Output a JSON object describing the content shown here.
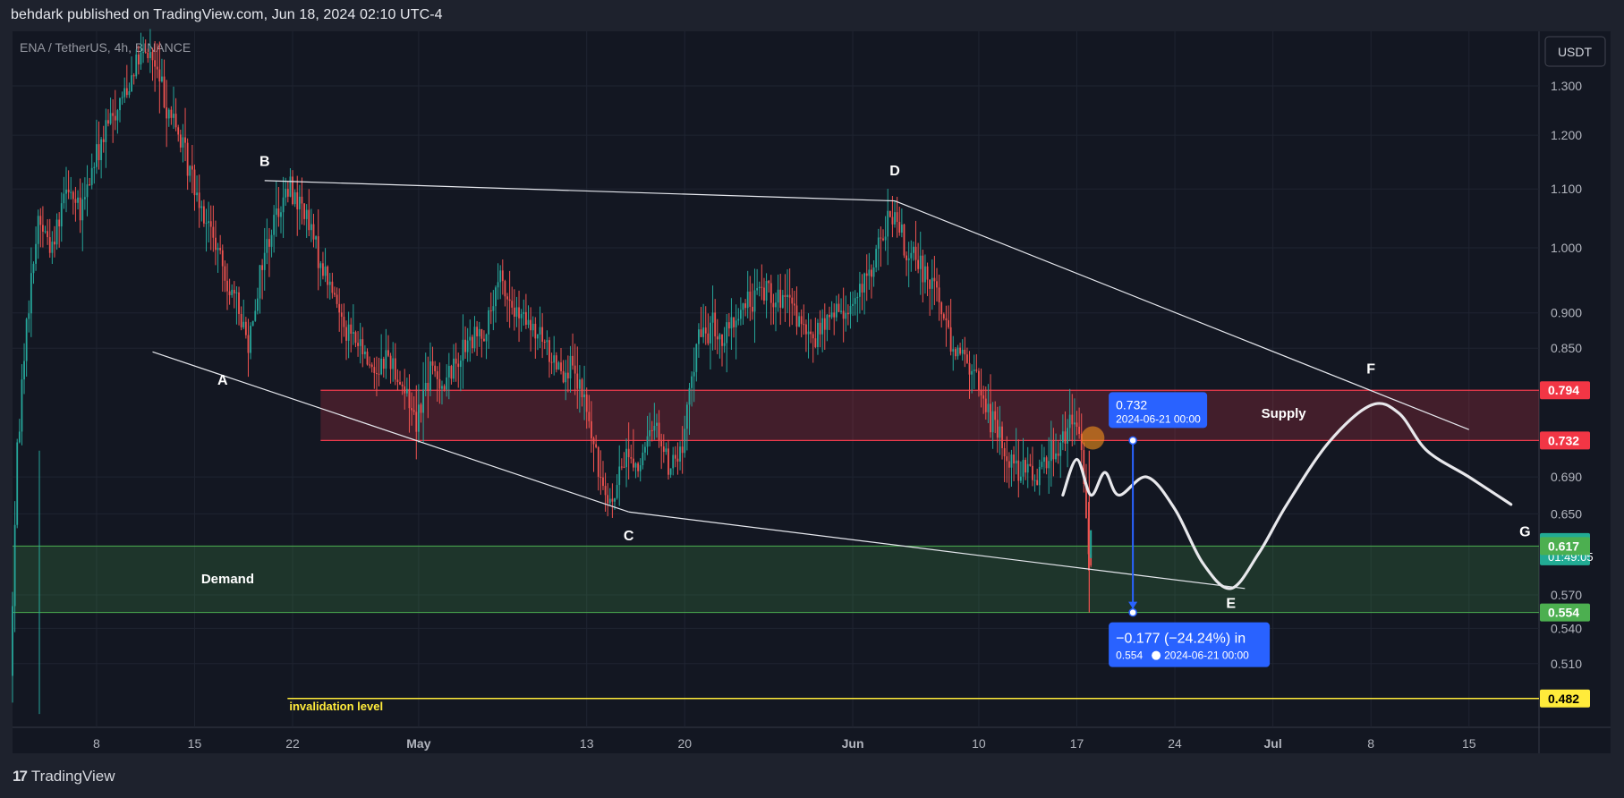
{
  "header": {
    "published": "behdark published on TradingView.com, Jun 18, 2024 02:10 UTC-4",
    "symbol": "ENA / TetherUS, 4h, BINANCE"
  },
  "footer": {
    "brand": "TradingView"
  },
  "colors": {
    "background": "#131722",
    "frame": "#1e222d",
    "up": "#26a69a",
    "down": "#ef5350",
    "supply": "#ef3b4d",
    "demand": "#4caf50",
    "blue": "#2962ff",
    "teal": "#22ab94",
    "yellow": "#ffeb3b"
  },
  "chart_data": {
    "type": "candlestick",
    "currency": "USDT",
    "yscale": "log",
    "ylim": [
      0.46,
      1.42
    ],
    "xlim": [
      "2024-04-02",
      "2024-07-20"
    ],
    "y_ticks": [
      1.3,
      1.2,
      1.1,
      1.0,
      0.9,
      0.85,
      0.69,
      0.65,
      0.57,
      0.54,
      0.51
    ],
    "y_tick_labels": [
      "1.300",
      "1.200",
      "1.100",
      "1.000",
      "0.900",
      "0.850",
      "0.690",
      "0.650",
      "0.570",
      "0.540",
      "0.510"
    ],
    "x_ticks": [
      {
        "date": "2024-04-08",
        "label": "8"
      },
      {
        "date": "2024-04-15",
        "label": "15"
      },
      {
        "date": "2024-04-22",
        "label": "22"
      },
      {
        "date": "2024-05-01",
        "label": "May",
        "bold": true
      },
      {
        "date": "2024-05-13",
        "label": "13"
      },
      {
        "date": "2024-05-20",
        "label": "20"
      },
      {
        "date": "2024-06-01",
        "label": "Jun",
        "bold": true
      },
      {
        "date": "2024-06-10",
        "label": "10"
      },
      {
        "date": "2024-06-17",
        "label": "17"
      },
      {
        "date": "2024-06-24",
        "label": "24"
      },
      {
        "date": "2024-07-01",
        "label": "Jul",
        "bold": true
      },
      {
        "date": "2024-07-08",
        "label": "8"
      },
      {
        "date": "2024-07-15",
        "label": "15"
      }
    ],
    "price_path": [
      [
        "2024-04-02",
        0.5
      ],
      [
        "2024-04-02T12",
        0.72
      ],
      [
        "2024-04-03",
        0.85
      ],
      [
        "2024-04-04",
        1.05
      ],
      [
        "2024-04-05",
        1.0
      ],
      [
        "2024-04-06",
        1.12
      ],
      [
        "2024-04-07",
        1.05
      ],
      [
        "2024-04-08",
        1.15
      ],
      [
        "2024-04-09",
        1.22
      ],
      [
        "2024-04-10",
        1.28
      ],
      [
        "2024-04-11",
        1.35
      ],
      [
        "2024-04-12",
        1.37
      ],
      [
        "2024-04-13",
        1.28
      ],
      [
        "2024-04-14",
        1.2
      ],
      [
        "2024-04-15",
        1.12
      ],
      [
        "2024-04-16",
        1.05
      ],
      [
        "2024-04-17",
        0.98
      ],
      [
        "2024-04-18",
        0.92
      ],
      [
        "2024-04-19",
        0.86
      ],
      [
        "2024-04-20",
        0.98
      ],
      [
        "2024-04-21",
        1.06
      ],
      [
        "2024-04-22",
        1.1
      ],
      [
        "2024-04-23",
        1.06
      ],
      [
        "2024-04-24",
        0.99
      ],
      [
        "2024-04-25",
        0.93
      ],
      [
        "2024-04-26",
        0.88
      ],
      [
        "2024-04-27",
        0.85
      ],
      [
        "2024-04-28",
        0.82
      ],
      [
        "2024-04-29",
        0.84
      ],
      [
        "2024-04-30",
        0.8
      ],
      [
        "2024-05-01",
        0.76
      ],
      [
        "2024-05-02",
        0.82
      ],
      [
        "2024-05-03",
        0.8
      ],
      [
        "2024-05-04",
        0.84
      ],
      [
        "2024-05-05",
        0.86
      ],
      [
        "2024-05-06",
        0.88
      ],
      [
        "2024-05-07",
        0.95
      ],
      [
        "2024-05-08",
        0.9
      ],
      [
        "2024-05-09",
        0.88
      ],
      [
        "2024-05-10",
        0.86
      ],
      [
        "2024-05-11",
        0.83
      ],
      [
        "2024-05-12",
        0.82
      ],
      [
        "2024-05-13",
        0.78
      ],
      [
        "2024-05-14",
        0.7
      ],
      [
        "2024-05-15",
        0.66
      ],
      [
        "2024-05-16",
        0.72
      ],
      [
        "2024-05-17",
        0.7
      ],
      [
        "2024-05-18",
        0.76
      ],
      [
        "2024-05-19",
        0.7
      ],
      [
        "2024-05-20",
        0.72
      ],
      [
        "2024-05-21",
        0.86
      ],
      [
        "2024-05-22",
        0.88
      ],
      [
        "2024-05-23",
        0.86
      ],
      [
        "2024-05-24",
        0.9
      ],
      [
        "2024-05-25",
        0.92
      ],
      [
        "2024-05-26",
        0.94
      ],
      [
        "2024-05-27",
        0.92
      ],
      [
        "2024-05-28",
        0.9
      ],
      [
        "2024-05-29",
        0.86
      ],
      [
        "2024-05-30",
        0.88
      ],
      [
        "2024-05-31",
        0.9
      ],
      [
        "2024-06-01",
        0.91
      ],
      [
        "2024-06-02",
        0.94
      ],
      [
        "2024-06-03",
        1.0
      ],
      [
        "2024-06-04",
        1.06
      ],
      [
        "2024-06-05",
        0.99
      ],
      [
        "2024-06-06",
        0.97
      ],
      [
        "2024-06-07",
        0.95
      ],
      [
        "2024-06-08",
        0.87
      ],
      [
        "2024-06-09",
        0.84
      ],
      [
        "2024-06-10",
        0.81
      ],
      [
        "2024-06-11",
        0.76
      ],
      [
        "2024-06-12",
        0.72
      ],
      [
        "2024-06-13",
        0.7
      ],
      [
        "2024-06-14",
        0.69
      ],
      [
        "2024-06-15",
        0.71
      ],
      [
        "2024-06-16",
        0.73
      ],
      [
        "2024-06-17",
        0.755
      ],
      [
        "2024-06-17T12",
        0.72
      ],
      [
        "2024-06-18",
        0.61
      ]
    ],
    "zones": [
      {
        "name": "Supply",
        "top": 0.794,
        "bottom": 0.732,
        "from": "2024-04-24",
        "to": "2024-07-20"
      },
      {
        "name": "Demand",
        "top": 0.617,
        "bottom": 0.554,
        "from": "2024-04-02",
        "to": "2024-07-20"
      }
    ],
    "pattern_lines": [
      [
        [
          "2024-04-12",
          0.845
        ],
        [
          "2024-05-16",
          0.652
        ]
      ],
      [
        [
          "2024-05-16",
          0.652
        ],
        [
          "2024-06-29",
          0.576
        ]
      ],
      [
        [
          "2024-04-20",
          1.115
        ],
        [
          "2024-06-04",
          1.079
        ]
      ],
      [
        [
          "2024-06-04",
          1.079
        ],
        [
          "2024-07-15",
          0.745
        ]
      ]
    ],
    "wave_labels": [
      {
        "label": "A",
        "date": "2024-04-17",
        "price": 0.808
      },
      {
        "label": "B",
        "date": "2024-04-20",
        "price": 1.152
      },
      {
        "label": "C",
        "date": "2024-05-16",
        "price": 0.628
      },
      {
        "label": "D",
        "date": "2024-06-04",
        "price": 1.134
      },
      {
        "label": "E",
        "date": "2024-06-28",
        "price": 0.563
      },
      {
        "label": "F",
        "date": "2024-07-08",
        "price": 0.823
      },
      {
        "label": "G",
        "date": "2024-07-19",
        "price": 0.632
      }
    ],
    "projection": [
      [
        "2024-06-16",
        0.67
      ],
      [
        "2024-06-17",
        0.71
      ],
      [
        "2024-06-18",
        0.67
      ],
      [
        "2024-06-19",
        0.695
      ],
      [
        "2024-06-20",
        0.67
      ],
      [
        "2024-06-22",
        0.69
      ],
      [
        "2024-06-24",
        0.655
      ],
      [
        "2024-06-26",
        0.6
      ],
      [
        "2024-06-28",
        0.576
      ],
      [
        "2024-06-30",
        0.61
      ],
      [
        "2024-07-02",
        0.66
      ],
      [
        "2024-07-05",
        0.73
      ],
      [
        "2024-07-08",
        0.775
      ],
      [
        "2024-07-10",
        0.765
      ],
      [
        "2024-07-12",
        0.72
      ],
      [
        "2024-07-15",
        0.69
      ],
      [
        "2024-07-18",
        0.66
      ]
    ],
    "measure": {
      "from_price": 0.732,
      "to_price": 0.554,
      "date": "2024-06-21",
      "top_label": "0.732",
      "top_date": "2024-06-21 00:00",
      "change": "−0.177 (−24.24%) in",
      "bottom_label": "0.554",
      "bottom_date": "2024-06-21  00:00"
    },
    "invalidation": {
      "label": "invalidation level",
      "price": 0.482,
      "from": "2024-04-24"
    },
    "zone_labels": {
      "supply": "Supply",
      "demand": "Demand"
    },
    "price_tags": [
      {
        "price": 0.794,
        "label": "0.794",
        "color": "#f23645"
      },
      {
        "price": 0.732,
        "label": "0.732",
        "color": "#f23645"
      },
      {
        "price": 0.621,
        "label": "0.621",
        "sublabel": "01:49:05",
        "color": "#22ab94"
      },
      {
        "price": 0.617,
        "label": "0.617",
        "color": "#4caf50"
      },
      {
        "price": 0.554,
        "label": "0.554",
        "color": "#4caf50"
      },
      {
        "price": 0.482,
        "label": "0.482",
        "color": "#ffeb3b",
        "text_color": "#000000"
      }
    ],
    "circle_marker": {
      "date": "2024-06-17T12",
      "price": 0.735
    }
  }
}
